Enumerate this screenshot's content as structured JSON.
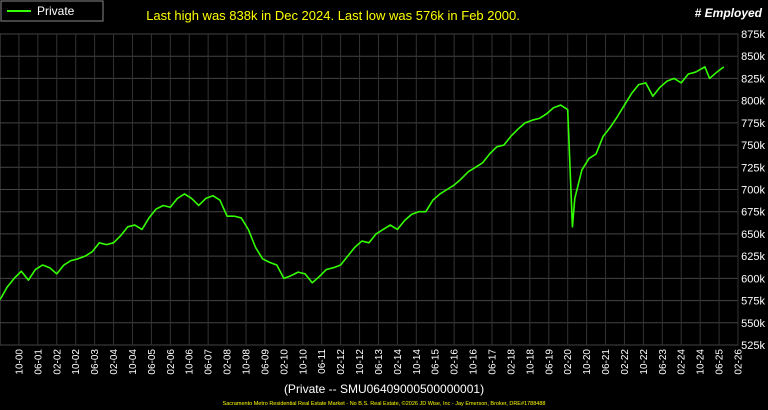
{
  "chart_data": {
    "type": "line",
    "annotation": "Last high was 838k in Dec 2024. Last low was 576k in Feb 2000.",
    "y_label": "# Employed",
    "x_label": "(Private -- SMU06409000500000001)",
    "footer": "Sacramento Metro Residential Real Estate Market - No B.S. Real Estate, ©2026 JD Wise, Inc - Jay Emerson, Broker, DRE#1788488",
    "legend": "upper left",
    "grid": true,
    "x": [
      "02-00",
      "05-00",
      "08-00",
      "11-00",
      "02-01",
      "05-01",
      "08-01",
      "11-01",
      "02-02",
      "05-02",
      "08-02",
      "11-02",
      "02-03",
      "05-03",
      "08-03",
      "11-03",
      "02-04",
      "05-04",
      "08-04",
      "11-04",
      "02-05",
      "05-05",
      "08-05",
      "11-05",
      "02-06",
      "05-06",
      "08-06",
      "11-06",
      "02-07",
      "05-07",
      "08-07",
      "11-07",
      "02-08",
      "05-08",
      "08-08",
      "11-08",
      "02-09",
      "05-09",
      "08-09",
      "11-09",
      "02-10",
      "05-10",
      "08-10",
      "11-10",
      "02-11",
      "05-11",
      "08-11",
      "11-11",
      "02-12",
      "05-12",
      "08-12",
      "11-12",
      "02-13",
      "05-13",
      "08-13",
      "11-13",
      "02-14",
      "05-14",
      "08-14",
      "11-14",
      "02-15",
      "05-15",
      "08-15",
      "11-15",
      "02-16",
      "05-16",
      "08-16",
      "11-16",
      "02-17",
      "05-17",
      "08-17",
      "11-17",
      "02-18",
      "05-18",
      "08-18",
      "11-18",
      "02-19",
      "05-19",
      "08-19",
      "11-19",
      "02-20",
      "04-20",
      "05-20",
      "08-20",
      "11-20",
      "02-21",
      "05-21",
      "08-21",
      "11-21",
      "02-22",
      "05-22",
      "08-22",
      "11-22",
      "02-23",
      "05-23",
      "08-23",
      "11-23",
      "02-24",
      "05-24",
      "08-24",
      "12-24",
      "02-25",
      "05-25",
      "08-25"
    ],
    "series": [
      {
        "name": "Private",
        "color": "#33ff00",
        "values": [
          576000,
          590000,
          600000,
          608000,
          598000,
          610000,
          615000,
          612000,
          605000,
          615000,
          620000,
          622000,
          625000,
          630000,
          640000,
          638000,
          640000,
          648000,
          658000,
          660000,
          655000,
          668000,
          678000,
          682000,
          680000,
          690000,
          695000,
          690000,
          682000,
          690000,
          693000,
          688000,
          670000,
          670000,
          668000,
          655000,
          635000,
          622000,
          618000,
          615000,
          600000,
          603000,
          607000,
          605000,
          595000,
          602000,
          610000,
          612000,
          615000,
          625000,
          635000,
          642000,
          640000,
          650000,
          655000,
          660000,
          655000,
          665000,
          672000,
          675000,
          675000,
          688000,
          695000,
          700000,
          705000,
          712000,
          720000,
          725000,
          730000,
          740000,
          748000,
          750000,
          760000,
          768000,
          775000,
          778000,
          780000,
          785000,
          792000,
          795000,
          790000,
          658000,
          690000,
          722000,
          735000,
          740000,
          760000,
          770000,
          782000,
          795000,
          808000,
          818000,
          820000,
          805000,
          815000,
          822000,
          825000,
          820000,
          830000,
          832000,
          838000,
          825000,
          832000,
          838000
        ]
      }
    ],
    "xlim": [
      "02-00",
      "02-26"
    ],
    "xticks": [
      "10-00",
      "06-01",
      "02-02",
      "10-02",
      "06-03",
      "02-04",
      "10-04",
      "06-05",
      "02-06",
      "10-06",
      "06-07",
      "02-08",
      "10-08",
      "06-09",
      "02-10",
      "10-10",
      "06-11",
      "02-12",
      "10-12",
      "06-13",
      "02-14",
      "10-14",
      "06-15",
      "02-16",
      "10-16",
      "06-17",
      "02-18",
      "10-18",
      "06-19",
      "02-20",
      "10-20",
      "06-21",
      "02-22",
      "10-22",
      "06-23",
      "02-24",
      "10-24",
      "06-25",
      "02-26"
    ],
    "ylim": [
      525000,
      875000
    ],
    "yticks": [
      {
        "value": 525000,
        "label": "525k"
      },
      {
        "value": 550000,
        "label": "550k"
      },
      {
        "value": 575000,
        "label": "575k"
      },
      {
        "value": 600000,
        "label": "600k"
      },
      {
        "value": 625000,
        "label": "625k"
      },
      {
        "value": 650000,
        "label": "650k"
      },
      {
        "value": 675000,
        "label": "675k"
      },
      {
        "value": 700000,
        "label": "700k"
      },
      {
        "value": 725000,
        "label": "725k"
      },
      {
        "value": 750000,
        "label": "750k"
      },
      {
        "value": 775000,
        "label": "775k"
      },
      {
        "value": 800000,
        "label": "800k"
      },
      {
        "value": 825000,
        "label": "825k"
      },
      {
        "value": 850000,
        "label": "850k"
      },
      {
        "value": 875000,
        "label": "875k"
      }
    ]
  }
}
